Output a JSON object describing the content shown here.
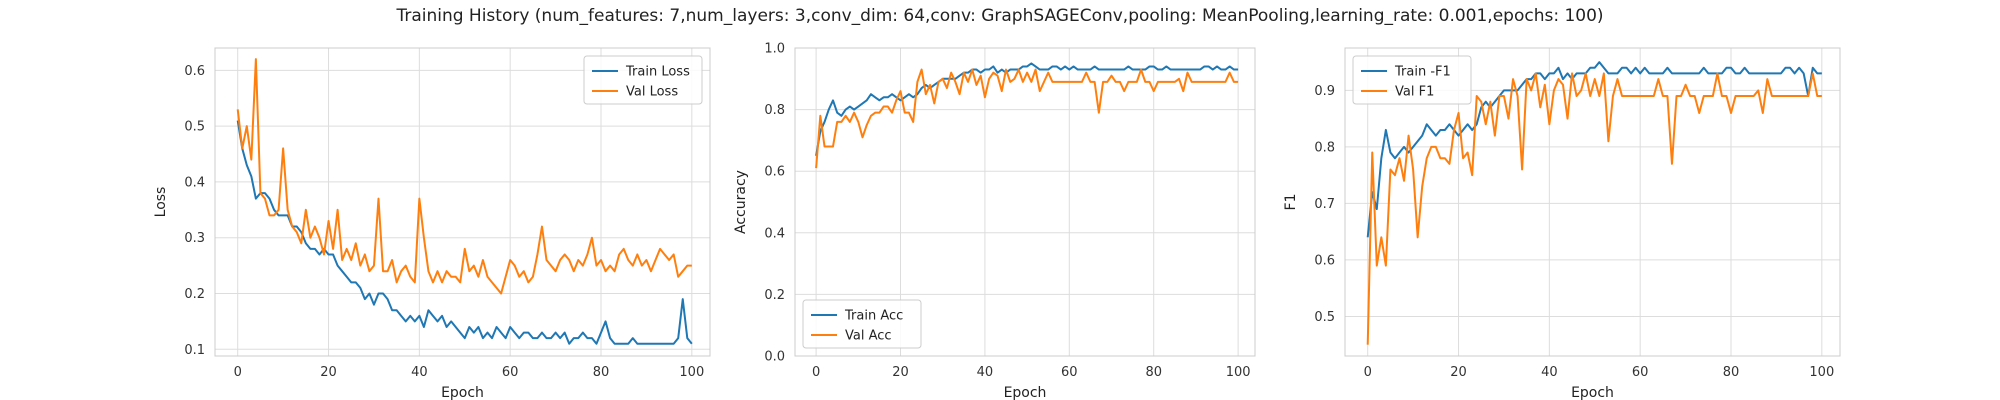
{
  "title": "Training History (num_features: 7,num_layers: 3,conv_dim: 64,conv: GraphSAGEConv,pooling: MeanPooling,learning_rate: 0.001,epochs: 100)",
  "colors": {
    "series1": "#1f77b4",
    "series2": "#ff7f0e",
    "grid": "#dddddd",
    "axes_edge": "#cccccc"
  },
  "chart_data": [
    {
      "type": "line",
      "xlabel": "Epoch",
      "ylabel": "Loss",
      "xlim": [
        -5,
        104
      ],
      "ylim": [
        0.088,
        0.64
      ],
      "xticks": [
        0,
        20,
        40,
        60,
        80,
        100
      ],
      "xtick_labels": [
        "0",
        "20",
        "40",
        "60",
        "80",
        "100"
      ],
      "yticks": [
        0.1,
        0.2,
        0.3,
        0.4,
        0.5,
        0.6
      ],
      "ytick_labels": [
        "0.1",
        "0.2",
        "0.3",
        "0.4",
        "0.5",
        "0.6"
      ],
      "legend_loc": "upper right",
      "grid": true,
      "series": [
        {
          "name": "Train Loss",
          "values": [
            0.51,
            0.46,
            0.43,
            0.41,
            0.37,
            0.38,
            0.38,
            0.37,
            0.35,
            0.34,
            0.34,
            0.34,
            0.32,
            0.32,
            0.31,
            0.29,
            0.28,
            0.28,
            0.27,
            0.28,
            0.27,
            0.27,
            0.25,
            0.24,
            0.23,
            0.22,
            0.22,
            0.21,
            0.19,
            0.2,
            0.18,
            0.2,
            0.2,
            0.19,
            0.17,
            0.17,
            0.16,
            0.15,
            0.16,
            0.15,
            0.16,
            0.14,
            0.17,
            0.16,
            0.15,
            0.16,
            0.14,
            0.15,
            0.14,
            0.13,
            0.12,
            0.14,
            0.13,
            0.14,
            0.12,
            0.13,
            0.12,
            0.14,
            0.13,
            0.12,
            0.14,
            0.13,
            0.12,
            0.13,
            0.13,
            0.12,
            0.12,
            0.13,
            0.12,
            0.12,
            0.13,
            0.12,
            0.13,
            0.11,
            0.12,
            0.12,
            0.13,
            0.12,
            0.12,
            0.11,
            0.13,
            0.15,
            0.12,
            0.11,
            0.11,
            0.11,
            0.11,
            0.12,
            0.11,
            0.11,
            0.11,
            0.11,
            0.11,
            0.11,
            0.11,
            0.11,
            0.11,
            0.12,
            0.19,
            0.12,
            0.11
          ]
        },
        {
          "name": "Val Loss",
          "values": [
            0.53,
            0.46,
            0.5,
            0.44,
            0.62,
            0.38,
            0.37,
            0.34,
            0.34,
            0.35,
            0.46,
            0.35,
            0.32,
            0.31,
            0.29,
            0.35,
            0.3,
            0.32,
            0.3,
            0.27,
            0.33,
            0.28,
            0.35,
            0.26,
            0.28,
            0.26,
            0.29,
            0.25,
            0.27,
            0.24,
            0.25,
            0.37,
            0.24,
            0.24,
            0.26,
            0.22,
            0.24,
            0.25,
            0.23,
            0.22,
            0.37,
            0.3,
            0.24,
            0.22,
            0.24,
            0.22,
            0.24,
            0.23,
            0.23,
            0.22,
            0.28,
            0.24,
            0.25,
            0.23,
            0.26,
            0.23,
            0.22,
            0.21,
            0.2,
            0.23,
            0.26,
            0.25,
            0.23,
            0.24,
            0.22,
            0.23,
            0.27,
            0.32,
            0.26,
            0.25,
            0.24,
            0.26,
            0.27,
            0.26,
            0.24,
            0.26,
            0.25,
            0.27,
            0.3,
            0.25,
            0.26,
            0.24,
            0.25,
            0.24,
            0.27,
            0.28,
            0.26,
            0.25,
            0.27,
            0.25,
            0.26,
            0.24,
            0.26,
            0.28,
            0.27,
            0.26,
            0.27,
            0.23,
            0.24,
            0.25,
            0.25
          ]
        }
      ]
    },
    {
      "type": "line",
      "xlabel": "Epoch",
      "ylabel": "Accuracy",
      "xlim": [
        -5,
        104
      ],
      "ylim": [
        0.0,
        1.0
      ],
      "xticks": [
        0,
        20,
        40,
        60,
        80,
        100
      ],
      "xtick_labels": [
        "0",
        "20",
        "40",
        "60",
        "80",
        "100"
      ],
      "yticks": [
        0.0,
        0.2,
        0.4,
        0.6,
        0.8,
        1.0
      ],
      "ytick_labels": [
        "0.0",
        "0.2",
        "0.4",
        "0.6",
        "0.8",
        "1.0"
      ],
      "legend_loc": "lower left",
      "grid": true,
      "series": [
        {
          "name": "Train Acc",
          "values": [
            0.65,
            0.73,
            0.76,
            0.8,
            0.83,
            0.79,
            0.78,
            0.8,
            0.81,
            0.8,
            0.81,
            0.82,
            0.83,
            0.85,
            0.84,
            0.83,
            0.84,
            0.84,
            0.85,
            0.84,
            0.83,
            0.84,
            0.85,
            0.84,
            0.85,
            0.87,
            0.88,
            0.87,
            0.88,
            0.89,
            0.9,
            0.9,
            0.9,
            0.9,
            0.91,
            0.92,
            0.92,
            0.93,
            0.93,
            0.92,
            0.93,
            0.93,
            0.94,
            0.92,
            0.93,
            0.92,
            0.93,
            0.93,
            0.93,
            0.94,
            0.94,
            0.95,
            0.94,
            0.93,
            0.93,
            0.93,
            0.94,
            0.94,
            0.93,
            0.94,
            0.93,
            0.94,
            0.93,
            0.93,
            0.93,
            0.93,
            0.94,
            0.93,
            0.93,
            0.93,
            0.93,
            0.93,
            0.93,
            0.93,
            0.94,
            0.93,
            0.93,
            0.93,
            0.93,
            0.94,
            0.94,
            0.93,
            0.93,
            0.94,
            0.93,
            0.93,
            0.93,
            0.93,
            0.93,
            0.93,
            0.93,
            0.93,
            0.94,
            0.94,
            0.93,
            0.94,
            0.93,
            0.93,
            0.94,
            0.93,
            0.93
          ]
        },
        {
          "name": "Val Acc",
          "values": [
            0.61,
            0.78,
            0.68,
            0.68,
            0.68,
            0.76,
            0.76,
            0.78,
            0.76,
            0.79,
            0.76,
            0.71,
            0.75,
            0.78,
            0.79,
            0.79,
            0.81,
            0.81,
            0.79,
            0.83,
            0.86,
            0.79,
            0.79,
            0.76,
            0.89,
            0.93,
            0.85,
            0.88,
            0.82,
            0.89,
            0.9,
            0.87,
            0.92,
            0.89,
            0.85,
            0.92,
            0.89,
            0.93,
            0.88,
            0.91,
            0.84,
            0.9,
            0.92,
            0.91,
            0.86,
            0.93,
            0.89,
            0.9,
            0.93,
            0.89,
            0.92,
            0.89,
            0.93,
            0.86,
            0.89,
            0.92,
            0.89,
            0.89,
            0.89,
            0.89,
            0.89,
            0.89,
            0.89,
            0.89,
            0.92,
            0.89,
            0.89,
            0.79,
            0.89,
            0.89,
            0.91,
            0.89,
            0.89,
            0.86,
            0.89,
            0.89,
            0.89,
            0.93,
            0.89,
            0.89,
            0.86,
            0.89,
            0.89,
            0.89,
            0.89,
            0.89,
            0.9,
            0.86,
            0.92,
            0.89,
            0.89,
            0.89,
            0.89,
            0.89,
            0.89,
            0.89,
            0.89,
            0.89,
            0.92,
            0.89,
            0.89
          ]
        }
      ]
    },
    {
      "type": "line",
      "xlabel": "Epoch",
      "ylabel": "F1",
      "xlim": [
        -5,
        104
      ],
      "ylim": [
        0.43,
        0.975
      ],
      "xticks": [
        0,
        20,
        40,
        60,
        80,
        100
      ],
      "xtick_labels": [
        "0",
        "20",
        "40",
        "60",
        "80",
        "100"
      ],
      "yticks": [
        0.5,
        0.6,
        0.7,
        0.8,
        0.9
      ],
      "ytick_labels": [
        "0.5",
        "0.6",
        "0.7",
        "0.8",
        "0.9"
      ],
      "legend_loc": "upper left",
      "grid": true,
      "series": [
        {
          "name": "Train -F1",
          "values": [
            0.64,
            0.72,
            0.69,
            0.78,
            0.83,
            0.79,
            0.78,
            0.79,
            0.8,
            0.79,
            0.8,
            0.81,
            0.82,
            0.84,
            0.83,
            0.82,
            0.83,
            0.83,
            0.84,
            0.83,
            0.82,
            0.83,
            0.84,
            0.83,
            0.84,
            0.87,
            0.88,
            0.87,
            0.88,
            0.89,
            0.9,
            0.9,
            0.9,
            0.9,
            0.91,
            0.92,
            0.92,
            0.93,
            0.93,
            0.92,
            0.93,
            0.93,
            0.94,
            0.92,
            0.93,
            0.92,
            0.93,
            0.93,
            0.93,
            0.94,
            0.94,
            0.95,
            0.94,
            0.93,
            0.93,
            0.93,
            0.94,
            0.94,
            0.93,
            0.94,
            0.93,
            0.94,
            0.93,
            0.93,
            0.93,
            0.93,
            0.94,
            0.93,
            0.93,
            0.93,
            0.93,
            0.93,
            0.93,
            0.93,
            0.94,
            0.93,
            0.93,
            0.93,
            0.93,
            0.94,
            0.94,
            0.93,
            0.93,
            0.94,
            0.93,
            0.93,
            0.93,
            0.93,
            0.93,
            0.93,
            0.93,
            0.93,
            0.94,
            0.94,
            0.93,
            0.94,
            0.93,
            0.89,
            0.94,
            0.93,
            0.93
          ]
        },
        {
          "name": "Val F1",
          "values": [
            0.45,
            0.79,
            0.59,
            0.64,
            0.59,
            0.76,
            0.75,
            0.78,
            0.74,
            0.82,
            0.76,
            0.64,
            0.73,
            0.78,
            0.8,
            0.8,
            0.78,
            0.78,
            0.77,
            0.83,
            0.86,
            0.78,
            0.79,
            0.75,
            0.89,
            0.88,
            0.84,
            0.88,
            0.82,
            0.89,
            0.89,
            0.85,
            0.92,
            0.89,
            0.76,
            0.92,
            0.9,
            0.93,
            0.87,
            0.91,
            0.84,
            0.9,
            0.92,
            0.91,
            0.85,
            0.93,
            0.89,
            0.9,
            0.93,
            0.89,
            0.92,
            0.89,
            0.93,
            0.81,
            0.89,
            0.92,
            0.89,
            0.89,
            0.89,
            0.89,
            0.89,
            0.89,
            0.89,
            0.89,
            0.92,
            0.89,
            0.89,
            0.77,
            0.89,
            0.89,
            0.91,
            0.89,
            0.89,
            0.86,
            0.89,
            0.89,
            0.89,
            0.93,
            0.89,
            0.89,
            0.86,
            0.89,
            0.89,
            0.89,
            0.89,
            0.89,
            0.9,
            0.86,
            0.92,
            0.89,
            0.89,
            0.89,
            0.89,
            0.89,
            0.89,
            0.89,
            0.89,
            0.89,
            0.93,
            0.89,
            0.89
          ]
        }
      ]
    }
  ]
}
